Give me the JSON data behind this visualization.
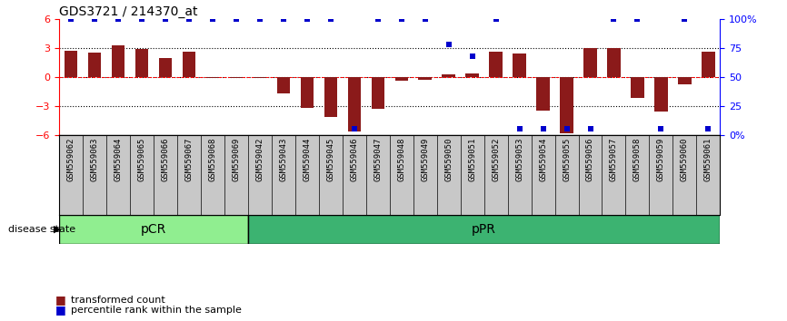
{
  "title": "GDS3721 / 214370_at",
  "samples": [
    "GSM559062",
    "GSM559063",
    "GSM559064",
    "GSM559065",
    "GSM559066",
    "GSM559067",
    "GSM559068",
    "GSM559069",
    "GSM559042",
    "GSM559043",
    "GSM559044",
    "GSM559045",
    "GSM559046",
    "GSM559047",
    "GSM559048",
    "GSM559049",
    "GSM559050",
    "GSM559051",
    "GSM559052",
    "GSM559053",
    "GSM559054",
    "GSM559055",
    "GSM559056",
    "GSM559057",
    "GSM559058",
    "GSM559059",
    "GSM559060",
    "GSM559061"
  ],
  "red_bars": [
    2.7,
    2.5,
    3.3,
    2.9,
    2.0,
    2.6,
    -0.1,
    -0.1,
    -0.1,
    -1.7,
    -3.2,
    -4.1,
    -5.7,
    -3.3,
    -0.4,
    -0.3,
    0.3,
    0.4,
    2.6,
    2.4,
    -3.5,
    -5.8,
    3.0,
    3.0,
    -2.2,
    -3.6,
    -0.8,
    2.6
  ],
  "blue_dots_pct": [
    100,
    100,
    100,
    100,
    100,
    100,
    100,
    100,
    100,
    100,
    100,
    100,
    5,
    100,
    100,
    100,
    78,
    68,
    100,
    5,
    5,
    5,
    5,
    100,
    100,
    5,
    100,
    5
  ],
  "pcr_count": 8,
  "ppr_count": 20,
  "ylim": [
    -6,
    6
  ],
  "y_left_ticks": [
    -6,
    -3,
    0,
    3,
    6
  ],
  "y_right_ticks": [
    0,
    25,
    50,
    75,
    100
  ],
  "y_right_labels": [
    "0%",
    "25",
    "50",
    "75",
    "100%"
  ],
  "dotted_lines": [
    3,
    0,
    -3
  ],
  "bar_color": "#8B1A1A",
  "dot_color": "#0000CC",
  "pcr_color": "#90EE90",
  "ppr_color": "#3CB371",
  "bg_color": "#FFFFFF",
  "group_label_pcr": "pCR",
  "group_label_ppr": "pPR",
  "disease_state_label": "disease state",
  "legend_red": "transformed count",
  "legend_blue": "percentile rank within the sample",
  "left_spine_color": "red",
  "right_spine_color": "blue",
  "gray_label_bg": "#C8C8C8"
}
